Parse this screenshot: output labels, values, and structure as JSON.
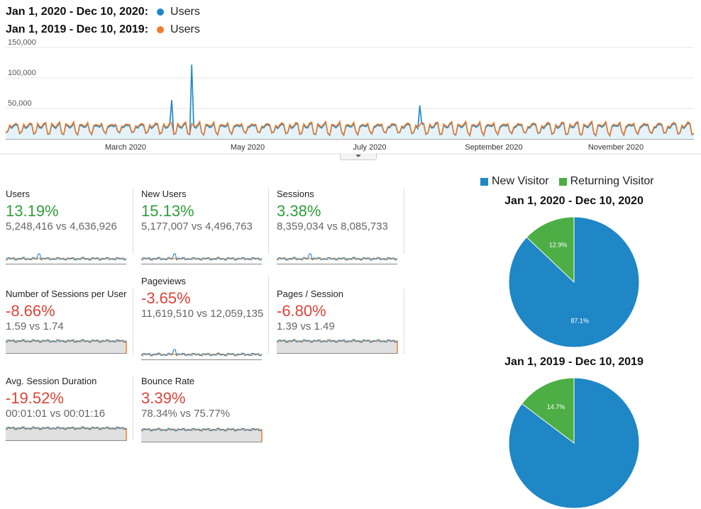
{
  "legend": {
    "current_range": "Jan 1, 2020 - Dec 10, 2020:",
    "previous_range": "Jan 1, 2019 - Dec 10, 2019:",
    "series_label": "Users",
    "current_color": "#1f87c6",
    "previous_color": "#ef7c2b"
  },
  "chart_data": {
    "type": "line",
    "ylim": [
      0,
      150000
    ],
    "y_ticks": [
      "150,000",
      "100,000",
      "50,000"
    ],
    "x_ticks": [
      "March 2020",
      "May 2020",
      "July 2020",
      "September 2020",
      "November 2020"
    ],
    "series": [
      {
        "name": "Users",
        "period": "Jan 1, 2020 - Dec 10, 2020",
        "color": "#1f87c6",
        "baseline": 22000,
        "spikes": [
          [
            83,
            64000
          ],
          [
            93,
            122000
          ],
          [
            207,
            55000
          ]
        ]
      },
      {
        "name": "Users",
        "period": "Jan 1, 2019 - Dec 10, 2019",
        "color": "#ef7c2b",
        "baseline": 24000,
        "spikes": []
      }
    ]
  },
  "metrics": [
    {
      "name": "Users",
      "pct": "13.19%",
      "trend": "pos",
      "cmp": "5,248,416 vs 4,636,926",
      "spark": "line"
    },
    {
      "name": "New Users",
      "pct": "15.13%",
      "trend": "pos",
      "cmp": "5,177,007 vs 4,496,763",
      "spark": "line"
    },
    {
      "name": "Sessions",
      "pct": "3.38%",
      "trend": "pos",
      "cmp": "8,359,034 vs 8,085,733",
      "spark": "line"
    },
    {
      "name": "Number of Sessions per User",
      "pct": "-8.66%",
      "trend": "neg",
      "cmp": "1.59 vs 1.74",
      "spark": "area"
    },
    {
      "name": "Pageviews",
      "pct": "-3.65%",
      "trend": "neg",
      "cmp": "11,619,510 vs 12,059,135",
      "spark": "line"
    },
    {
      "name": "Pages / Session",
      "pct": "-6.80%",
      "trend": "neg",
      "cmp": "1.39 vs 1.49",
      "spark": "area"
    },
    {
      "name": "Avg. Session Duration",
      "pct": "-19.52%",
      "trend": "neg",
      "cmp": "00:01:01 vs 00:01:16",
      "spark": "area"
    },
    {
      "name": "Bounce Rate",
      "pct": "3.39%",
      "trend": "neg",
      "cmp": "78.34% vs 75.77%",
      "spark": "area"
    }
  ],
  "pie_legend": {
    "new_label": "New Visitor",
    "returning_label": "Returning Visitor",
    "new_color": "#1f87c6",
    "returning_color": "#4cae45"
  },
  "pies": [
    {
      "title": "Jan 1, 2020 - Dec 10, 2020",
      "new_pct": 87.1,
      "returning_pct": 12.9,
      "new_label": "87.1%",
      "returning_label": "12.9%"
    },
    {
      "title": "Jan 1, 2019 - Dec 10, 2019",
      "new_pct": 85.3,
      "returning_pct": 14.7,
      "new_label": "",
      "returning_label": "14.7%"
    }
  ]
}
